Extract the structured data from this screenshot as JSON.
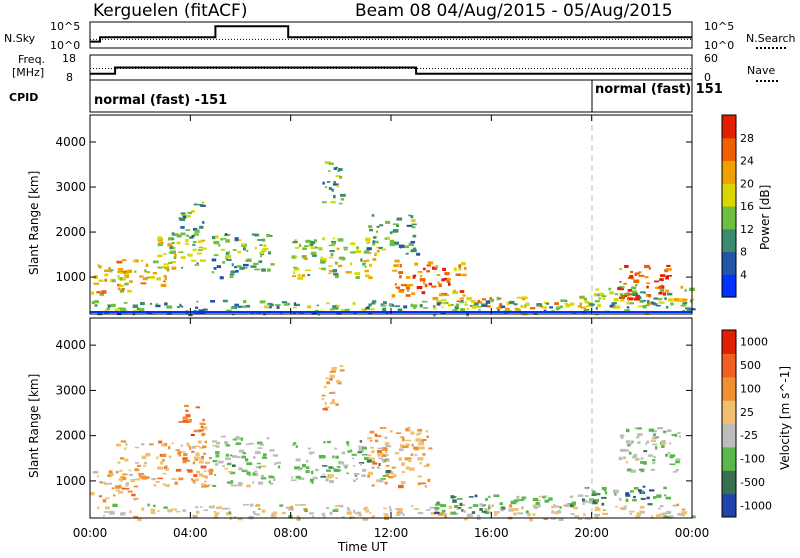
{
  "header": {
    "title": "Kerguelen (fitACF)",
    "subtitle": "Beam 08  04/Aug/2015 - 05/Aug/2015"
  },
  "noise_panel": {
    "left_label": "N.Sky",
    "right_label": "N.Search",
    "left_ticks": [
      "10^5",
      "10^0"
    ],
    "right_ticks": [
      "10^5",
      "10^0"
    ]
  },
  "freq_panel": {
    "left_label_1": "Freq.",
    "left_label_2": "[MHz]",
    "right_label": "Nave",
    "left_ticks": [
      "18",
      "8"
    ],
    "right_ticks": [
      "60",
      "0"
    ]
  },
  "cpid_panel": {
    "label": "CPID",
    "modes": [
      "normal (fast) -151",
      "normal (fast) 151"
    ]
  },
  "colors": {
    "frame": "#000000",
    "dashed_marker": "#bbbbbb"
  },
  "chart_data": [
    {
      "type": "line",
      "panel": "noise",
      "series": [
        {
          "name": "N.Sky",
          "x_hours": [
            0,
            0.4,
            0.4,
            5.0,
            5.0,
            7.9,
            7.9,
            24
          ],
          "values": [
            1,
            1,
            2,
            2,
            4.5,
            4.5,
            2,
            2
          ]
        },
        {
          "name": "N.Search",
          "x_hours": [
            0,
            24
          ],
          "values": [
            1.5,
            1.5
          ]
        }
      ],
      "ylim": [
        0,
        5
      ]
    },
    {
      "type": "line",
      "panel": "frequency",
      "series": [
        {
          "name": "Freq.",
          "x_hours": [
            0,
            1,
            1,
            13,
            13,
            24
          ],
          "values": [
            10,
            10,
            13,
            13,
            10,
            10
          ]
        },
        {
          "name": "Nave",
          "x_hours": [
            0,
            24
          ],
          "values": [
            27,
            27
          ]
        }
      ]
    },
    {
      "type": "heatmap",
      "title": "Power",
      "xlabel": "Time UT",
      "ylabel": "Slant Range [km]",
      "x_ticks": [
        "00:00",
        "04:00",
        "08:00",
        "12:00",
        "16:00",
        "20:00",
        "00:00"
      ],
      "y_ticks": [
        "1000",
        "2000",
        "3000",
        "4000"
      ],
      "xlim_hours": [
        0,
        24
      ],
      "ylim_km": [
        180,
        4600
      ],
      "colorbar": {
        "label": "Power [dB]",
        "ticks": [
          "4",
          "8",
          "12",
          "16",
          "20",
          "24",
          "28"
        ],
        "colors": [
          "#0033ff",
          "#2255aa",
          "#3b8c6f",
          "#6fbf3f",
          "#d8d800",
          "#f0a000",
          "#f06000",
          "#e02000"
        ]
      },
      "regions": [
        {
          "t0": 0.0,
          "t1": 1.6,
          "r0": 600,
          "r1": 1300,
          "v": 20
        },
        {
          "t0": 0.0,
          "t1": 24,
          "r0": 180,
          "r1": 500,
          "v": 10
        },
        {
          "t0": 1.0,
          "t1": 3.0,
          "r0": 800,
          "r1": 1400,
          "v": 18
        },
        {
          "t0": 2.5,
          "t1": 4.5,
          "r0": 1100,
          "r1": 2000,
          "v": 16
        },
        {
          "t0": 3.5,
          "t1": 4.5,
          "r0": 1900,
          "r1": 2700,
          "v": 12
        },
        {
          "t0": 4.8,
          "t1": 7.2,
          "r0": 1000,
          "r1": 2000,
          "v": 10
        },
        {
          "t0": 8.0,
          "t1": 11.5,
          "r0": 1000,
          "r1": 1900,
          "v": 16
        },
        {
          "t0": 9.2,
          "t1": 10.0,
          "r0": 2600,
          "r1": 3600,
          "v": 10
        },
        {
          "t0": 11.0,
          "t1": 13.0,
          "r0": 1500,
          "r1": 2400,
          "v": 12
        },
        {
          "t0": 12.0,
          "t1": 15.0,
          "r0": 600,
          "r1": 1400,
          "v": 24
        },
        {
          "t0": 13.5,
          "t1": 20.0,
          "r0": 300,
          "r1": 600,
          "v": 18
        },
        {
          "t0": 20.0,
          "t1": 24.0,
          "r0": 450,
          "r1": 900,
          "v": 16
        },
        {
          "t0": 21.0,
          "t1": 23.0,
          "r0": 500,
          "r1": 1300,
          "v": 28
        }
      ]
    },
    {
      "type": "heatmap",
      "title": "Velocity",
      "xlabel": "Time UT",
      "ylabel": "Slant Range [km]",
      "x_ticks": [
        "00:00",
        "04:00",
        "08:00",
        "12:00",
        "16:00",
        "20:00",
        "00:00"
      ],
      "y_ticks": [
        "1000",
        "2000",
        "3000",
        "4000"
      ],
      "xlim_hours": [
        0,
        24
      ],
      "ylim_km": [
        180,
        4600
      ],
      "colorbar": {
        "label": "Velocity [m s^-1]",
        "ticks": [
          "1000",
          "500",
          "100",
          "25",
          "-25",
          "-100",
          "-500",
          "-1000"
        ],
        "colors": [
          "#2244aa",
          "#3a7050",
          "#58b84a",
          "#bdbdbd",
          "#f0c070",
          "#f09030",
          "#f06020",
          "#e02000"
        ]
      },
      "regions": [
        {
          "t0": 0.0,
          "t1": 1.8,
          "r0": 600,
          "r1": 1300,
          "v": -100
        },
        {
          "t0": 0.0,
          "t1": 24,
          "r0": 180,
          "r1": 500,
          "v": -25
        },
        {
          "t0": 1.0,
          "t1": 4.8,
          "r0": 900,
          "r1": 1900,
          "v": -100
        },
        {
          "t0": 3.5,
          "t1": 4.5,
          "r0": 2000,
          "r1": 2700,
          "v": -500
        },
        {
          "t0": 4.8,
          "t1": 7.5,
          "r0": 900,
          "r1": 2000,
          "v": 25
        },
        {
          "t0": 8.0,
          "t1": 11.8,
          "r0": 1000,
          "r1": 1900,
          "v": 25
        },
        {
          "t0": 9.2,
          "t1": 10.0,
          "r0": 2600,
          "r1": 3600,
          "v": -100
        },
        {
          "t0": 11.0,
          "t1": 13.5,
          "r0": 900,
          "r1": 2200,
          "v": -100
        },
        {
          "t0": 13.5,
          "t1": 16.5,
          "r0": 300,
          "r1": 700,
          "v": 100
        },
        {
          "t0": 16.5,
          "t1": 20.0,
          "r0": 450,
          "r1": 700,
          "v": 25
        },
        {
          "t0": 19.5,
          "t1": 23.0,
          "r0": 500,
          "r1": 900,
          "v": 100
        },
        {
          "t0": 21.0,
          "t1": 23.5,
          "r0": 1200,
          "r1": 2200,
          "v": 25
        }
      ]
    }
  ]
}
